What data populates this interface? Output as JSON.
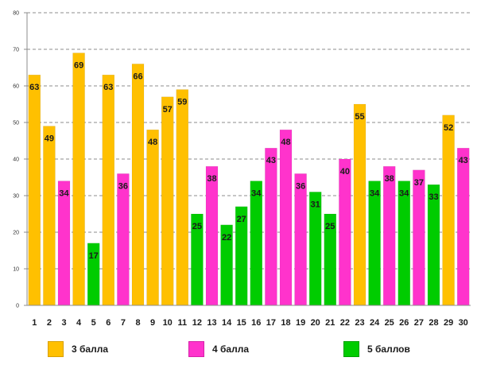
{
  "chart_data": {
    "type": "bar",
    "title": "",
    "xlabel": "",
    "ylabel": "",
    "ylim": [
      0,
      80
    ],
    "yticks": [
      0,
      10,
      20,
      30,
      40,
      50,
      60,
      70,
      80
    ],
    "grid": true,
    "categories": [
      "1",
      "2",
      "3",
      "4",
      "5",
      "6",
      "7",
      "8",
      "9",
      "10",
      "11",
      "12",
      "13",
      "14",
      "15",
      "16",
      "17",
      "18",
      "19",
      "20",
      "21",
      "22",
      "23",
      "24",
      "25",
      "26",
      "27",
      "28",
      "29",
      "30"
    ],
    "values": [
      63,
      49,
      34,
      69,
      17,
      63,
      36,
      66,
      48,
      57,
      59,
      25,
      38,
      22,
      27,
      34,
      43,
      48,
      36,
      31,
      25,
      40,
      55,
      34,
      38,
      34,
      37,
      33,
      52,
      43
    ],
    "groups": [
      "3",
      "3",
      "4",
      "3",
      "5",
      "3",
      "4",
      "3",
      "3",
      "3",
      "3",
      "5",
      "4",
      "5",
      "5",
      "5",
      "4",
      "4",
      "4",
      "5",
      "5",
      "4",
      "3",
      "5",
      "4",
      "5",
      "4",
      "5",
      "3",
      "4"
    ],
    "series": [
      {
        "key": "3",
        "name": "3 балла",
        "color": "#ffc000"
      },
      {
        "key": "4",
        "name": "4 балла",
        "color": "#ff33cc"
      },
      {
        "key": "5",
        "name": "5 баллов",
        "color": "#00cc00"
      }
    ],
    "legend_position": "bottom"
  }
}
